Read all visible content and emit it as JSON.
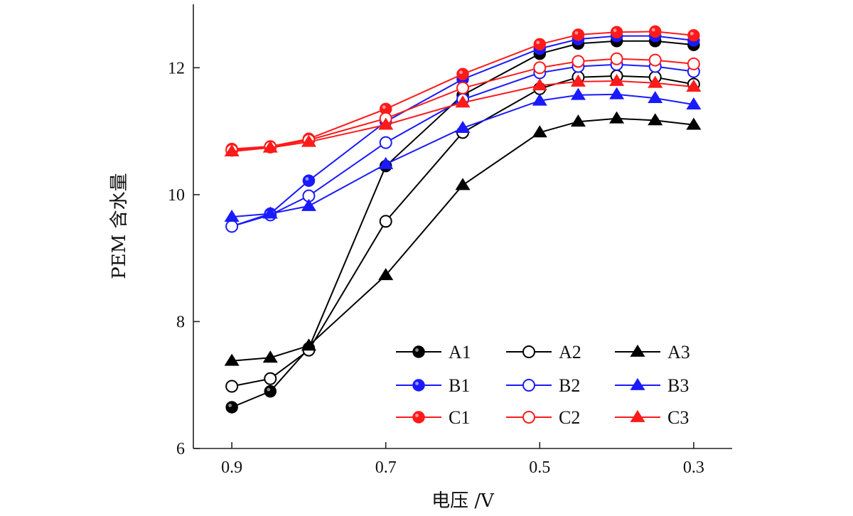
{
  "chart_data": {
    "type": "line",
    "xlabel": "电压 /V",
    "ylabel": "PEM 含水量",
    "x_reversed": true,
    "xlim": [
      0.95,
      0.25
    ],
    "ylim": [
      6,
      13
    ],
    "x_ticks": [
      0.9,
      0.7,
      0.5,
      0.3
    ],
    "x_tick_labels": [
      "0.9",
      "0.7",
      "0.5",
      "0.3"
    ],
    "y_ticks": [
      6,
      8,
      10,
      12
    ],
    "y_tick_labels": [
      "6",
      "8",
      "10",
      "12"
    ],
    "grid": false,
    "legend_position": "bottom-right",
    "x": [
      0.9,
      0.85,
      0.8,
      0.7,
      0.6,
      0.5,
      0.45,
      0.4,
      0.35,
      0.3
    ],
    "series": [
      {
        "name": "A1",
        "color": "#000000",
        "marker": "filled-circle",
        "values": [
          6.65,
          6.9,
          7.58,
          10.45,
          11.57,
          12.22,
          12.38,
          12.42,
          12.42,
          12.36
        ]
      },
      {
        "name": "A2",
        "color": "#000000",
        "marker": "open-circle",
        "values": [
          6.98,
          7.1,
          7.55,
          9.58,
          10.98,
          11.67,
          11.85,
          11.87,
          11.85,
          11.74
        ]
      },
      {
        "name": "A3",
        "color": "#000000",
        "marker": "triangle",
        "values": [
          7.38,
          7.43,
          7.62,
          8.73,
          10.15,
          10.98,
          11.15,
          11.2,
          11.17,
          11.1
        ]
      },
      {
        "name": "B1",
        "color": "#1a1aff",
        "marker": "filled-circle",
        "values": [
          9.5,
          9.7,
          10.22,
          11.15,
          11.82,
          12.3,
          12.45,
          12.5,
          12.5,
          12.43
        ]
      },
      {
        "name": "B2",
        "color": "#1a1aff",
        "marker": "open-circle",
        "values": [
          9.5,
          9.68,
          9.98,
          10.82,
          11.5,
          11.92,
          12.02,
          12.05,
          12.02,
          11.94
        ]
      },
      {
        "name": "B3",
        "color": "#1a1aff",
        "marker": "triangle",
        "values": [
          9.65,
          9.7,
          9.82,
          10.48,
          11.05,
          11.48,
          11.57,
          11.58,
          11.52,
          11.42
        ]
      },
      {
        "name": "C1",
        "color": "#ff1a1a",
        "marker": "filled-circle",
        "values": [
          10.72,
          10.76,
          10.88,
          11.35,
          11.9,
          12.37,
          12.52,
          12.56,
          12.57,
          12.51
        ]
      },
      {
        "name": "C2",
        "color": "#ff1a1a",
        "marker": "open-circle",
        "values": [
          10.7,
          10.75,
          10.86,
          11.2,
          11.68,
          12.0,
          12.1,
          12.14,
          12.12,
          12.06
        ]
      },
      {
        "name": "C3",
        "color": "#ff1a1a",
        "marker": "triangle",
        "values": [
          10.68,
          10.74,
          10.83,
          11.1,
          11.45,
          11.72,
          11.78,
          11.79,
          11.76,
          11.7
        ]
      }
    ]
  }
}
